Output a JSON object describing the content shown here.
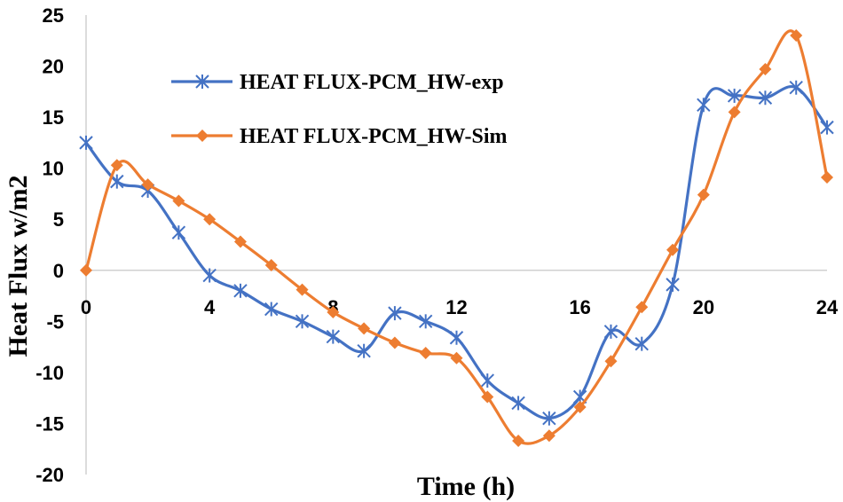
{
  "chart_data": {
    "type": "line",
    "xlabel": "Time (h)",
    "ylabel": "Heat Flux w/m2",
    "xlim": [
      0,
      24
    ],
    "ylim": [
      -20,
      25
    ],
    "x_ticks": [
      "0",
      "4",
      "8",
      "12",
      "16",
      "20",
      "24"
    ],
    "y_ticks": [
      "25",
      "20",
      "15",
      "10",
      "5",
      "0",
      "-5",
      "-10",
      "-15",
      "-20"
    ],
    "grid": false,
    "legend_position": "top-left",
    "x": [
      0,
      1,
      2,
      3,
      4,
      5,
      6,
      7,
      8,
      9,
      10,
      11,
      12,
      13,
      14,
      15,
      16,
      17,
      18,
      19,
      20,
      21,
      22,
      23,
      24
    ],
    "series": [
      {
        "name": "HEAT FLUX-PCM_HW-exp",
        "color": "#4472c4",
        "marker": "asterisk",
        "values": [
          12.5,
          8.7,
          7.8,
          3.7,
          -0.5,
          -2.0,
          -3.8,
          -5.0,
          -6.5,
          -7.9,
          -4.2,
          -5.0,
          -6.6,
          -10.8,
          -13.0,
          -14.5,
          -12.4,
          -6.0,
          -7.2,
          -1.4,
          16.2,
          17.1,
          16.9,
          17.9,
          14.0
        ]
      },
      {
        "name": "HEAT FLUX-PCM_HW-Sim",
        "color": "#ed7d31",
        "marker": "diamond",
        "values": [
          0.0,
          10.3,
          8.4,
          6.8,
          5.0,
          2.8,
          0.5,
          -1.9,
          -4.1,
          -5.7,
          -7.1,
          -8.1,
          -8.6,
          -12.4,
          -16.7,
          -16.2,
          -13.4,
          -8.9,
          -3.6,
          2.0,
          7.4,
          15.5,
          19.7,
          23.0,
          9.1
        ]
      }
    ]
  }
}
